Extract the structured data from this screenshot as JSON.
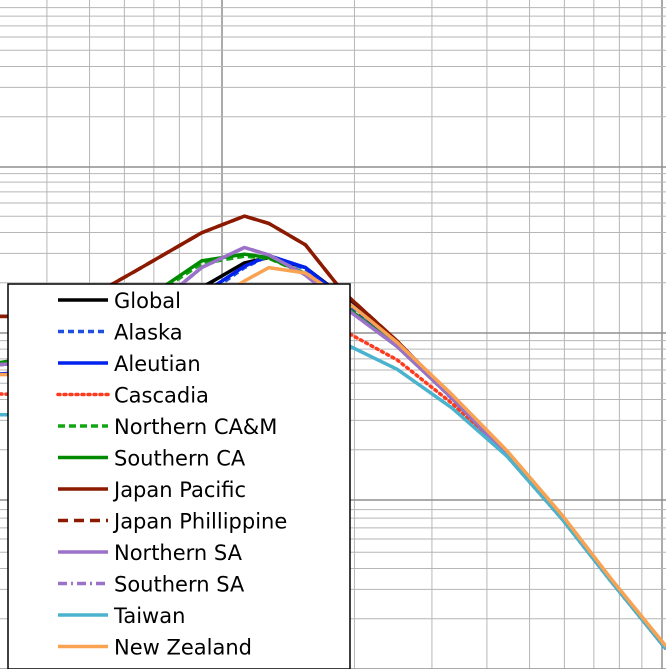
{
  "chart_data": {
    "type": "line",
    "title": "",
    "xlabel": "",
    "ylabel": "",
    "x_scale": "log",
    "y_scale": "log",
    "grid": true,
    "legend_placement": "bottom-left",
    "series": [
      {
        "name": "Global",
        "color": "#000000",
        "dash": "solid",
        "points": [
          [
            0,
            0.455
          ],
          [
            0.9,
            0.462
          ],
          [
            2.2,
            0.508
          ],
          [
            3.3,
            0.57
          ],
          [
            4.0,
            0.607
          ],
          [
            4.4,
            0.615
          ],
          [
            5.0,
            0.6
          ],
          [
            5.6,
            0.558
          ],
          [
            6.5,
            0.485
          ],
          [
            7.4,
            0.405
          ],
          [
            8.3,
            0.32
          ],
          [
            9.2,
            0.225
          ],
          [
            10.0,
            0.132
          ],
          [
            10.9,
            0.03
          ]
        ]
      },
      {
        "name": "Alaska",
        "color": "#1f4fe0",
        "dash": "6,4",
        "points": [
          [
            0,
            0.441
          ],
          [
            0.9,
            0.445
          ],
          [
            2.2,
            0.482
          ],
          [
            3.3,
            0.555
          ],
          [
            4.0,
            0.6
          ],
          [
            4.4,
            0.618
          ],
          [
            5.0,
            0.598
          ],
          [
            5.6,
            0.553
          ],
          [
            6.5,
            0.484
          ],
          [
            7.4,
            0.404
          ],
          [
            8.3,
            0.32
          ],
          [
            9.2,
            0.225
          ],
          [
            10.0,
            0.132
          ],
          [
            10.9,
            0.03
          ]
        ]
      },
      {
        "name": "Aleutian",
        "color": "#0022ee",
        "dash": "solid",
        "points": [
          [
            0,
            0.441
          ],
          [
            0.9,
            0.447
          ],
          [
            2.2,
            0.49
          ],
          [
            3.3,
            0.56
          ],
          [
            4.0,
            0.602
          ],
          [
            4.4,
            0.618
          ],
          [
            5.0,
            0.6
          ],
          [
            5.6,
            0.556
          ],
          [
            6.5,
            0.485
          ],
          [
            7.4,
            0.405
          ],
          [
            8.3,
            0.32
          ],
          [
            9.2,
            0.225
          ],
          [
            10.0,
            0.132
          ],
          [
            10.9,
            0.03
          ]
        ]
      },
      {
        "name": "Cascadia",
        "color": "#ff3b1f",
        "dash": "2,4",
        "points": [
          [
            0,
            0.411
          ],
          [
            0.9,
            0.409
          ],
          [
            2.2,
            0.437
          ],
          [
            3.3,
            0.498
          ],
          [
            4.0,
            0.535
          ],
          [
            4.4,
            0.546
          ],
          [
            5.0,
            0.537
          ],
          [
            5.6,
            0.507
          ],
          [
            6.5,
            0.462
          ],
          [
            7.4,
            0.397
          ],
          [
            8.3,
            0.318
          ],
          [
            9.2,
            0.224
          ],
          [
            10.0,
            0.131
          ],
          [
            10.9,
            0.03
          ]
        ]
      },
      {
        "name": "Northern CA&M",
        "color": "#12a612",
        "dash": "7,4",
        "points": [
          [
            0,
            0.458
          ],
          [
            0.9,
            0.471
          ],
          [
            2.2,
            0.54
          ],
          [
            3.3,
            0.606
          ],
          [
            4.0,
            0.617
          ],
          [
            4.4,
            0.614
          ],
          [
            5.0,
            0.59
          ],
          [
            5.6,
            0.545
          ],
          [
            6.5,
            0.482
          ],
          [
            7.4,
            0.405
          ],
          [
            8.3,
            0.32
          ],
          [
            9.2,
            0.225
          ],
          [
            10.0,
            0.132
          ],
          [
            10.9,
            0.03
          ]
        ]
      },
      {
        "name": "Southern CA",
        "color": "#008a00",
        "dash": "solid",
        "points": [
          [
            0,
            0.458
          ],
          [
            0.9,
            0.471
          ],
          [
            2.2,
            0.542
          ],
          [
            3.3,
            0.61
          ],
          [
            4.0,
            0.62
          ],
          [
            4.4,
            0.615
          ],
          [
            5.0,
            0.591
          ],
          [
            5.6,
            0.546
          ],
          [
            6.5,
            0.482
          ],
          [
            7.4,
            0.405
          ],
          [
            8.3,
            0.32
          ],
          [
            9.2,
            0.225
          ],
          [
            10.0,
            0.132
          ],
          [
            10.9,
            0.03
          ]
        ]
      },
      {
        "name": "Japan Pacific",
        "color": "#8b1a00",
        "dash": "solid",
        "points": [
          [
            0,
            0.527
          ],
          [
            0.9,
            0.527
          ],
          [
            2.2,
            0.594
          ],
          [
            3.3,
            0.652
          ],
          [
            4.0,
            0.677
          ],
          [
            4.4,
            0.666
          ],
          [
            5.0,
            0.634
          ],
          [
            5.6,
            0.565
          ],
          [
            6.5,
            0.49
          ],
          [
            7.4,
            0.406
          ],
          [
            8.3,
            0.32
          ],
          [
            9.2,
            0.225
          ],
          [
            10.0,
            0.132
          ],
          [
            10.9,
            0.03
          ]
        ]
      },
      {
        "name": "Japan Phillippine",
        "color": "#8b1a00",
        "dash": "10,6",
        "points": [
          [
            0,
            0.527
          ],
          [
            0.9,
            0.527
          ],
          [
            2.2,
            0.594
          ],
          [
            3.3,
            0.652
          ],
          [
            4.0,
            0.677
          ],
          [
            4.4,
            0.666
          ],
          [
            5.0,
            0.634
          ],
          [
            5.6,
            0.565
          ],
          [
            6.5,
            0.49
          ],
          [
            7.4,
            0.406
          ],
          [
            8.3,
            0.32
          ],
          [
            9.2,
            0.225
          ],
          [
            10.0,
            0.132
          ],
          [
            10.9,
            0.03
          ]
        ]
      },
      {
        "name": "Northern SA",
        "color": "#9b72c8",
        "dash": "solid",
        "points": [
          [
            0,
            0.455
          ],
          [
            0.9,
            0.462
          ],
          [
            2.2,
            0.517
          ],
          [
            3.3,
            0.6
          ],
          [
            4.0,
            0.63
          ],
          [
            4.4,
            0.619
          ],
          [
            5.0,
            0.589
          ],
          [
            5.6,
            0.543
          ],
          [
            6.5,
            0.482
          ],
          [
            7.4,
            0.405
          ],
          [
            8.3,
            0.32
          ],
          [
            9.2,
            0.225
          ],
          [
            10.0,
            0.132
          ],
          [
            10.9,
            0.03
          ]
        ]
      },
      {
        "name": "Southern SA",
        "color": "#9b72c8",
        "dash": "9,4,2,4",
        "points": [
          [
            0,
            0.455
          ],
          [
            0.9,
            0.462
          ],
          [
            2.2,
            0.517
          ],
          [
            3.3,
            0.6
          ],
          [
            4.0,
            0.63
          ],
          [
            4.4,
            0.619
          ],
          [
            5.0,
            0.589
          ],
          [
            5.6,
            0.543
          ],
          [
            6.5,
            0.482
          ],
          [
            7.4,
            0.405
          ],
          [
            8.3,
            0.32
          ],
          [
            9.2,
            0.225
          ],
          [
            10.0,
            0.132
          ],
          [
            10.9,
            0.03
          ]
        ]
      },
      {
        "name": "Taiwan",
        "color": "#4bb3cd",
        "dash": "solid",
        "points": [
          [
            0,
            0.38
          ],
          [
            0.9,
            0.38
          ],
          [
            2.2,
            0.417
          ],
          [
            3.3,
            0.475
          ],
          [
            4.0,
            0.515
          ],
          [
            4.4,
            0.523
          ],
          [
            5.0,
            0.515
          ],
          [
            5.6,
            0.488
          ],
          [
            6.5,
            0.448
          ],
          [
            7.4,
            0.39
          ],
          [
            8.3,
            0.318
          ],
          [
            9.2,
            0.224
          ],
          [
            10.0,
            0.131
          ],
          [
            10.9,
            0.03
          ]
        ]
      },
      {
        "name": "New Zealand",
        "color": "#f9a252",
        "dash": "solid",
        "points": [
          [
            0,
            0.44
          ],
          [
            0.9,
            0.441
          ],
          [
            2.2,
            0.473
          ],
          [
            3.3,
            0.537
          ],
          [
            4.0,
            0.58
          ],
          [
            4.4,
            0.6
          ],
          [
            5.0,
            0.592
          ],
          [
            5.6,
            0.555
          ],
          [
            6.5,
            0.488
          ],
          [
            7.4,
            0.41
          ],
          [
            8.3,
            0.326
          ],
          [
            9.2,
            0.23
          ],
          [
            10.0,
            0.135
          ],
          [
            10.9,
            0.034
          ]
        ]
      }
    ]
  }
}
